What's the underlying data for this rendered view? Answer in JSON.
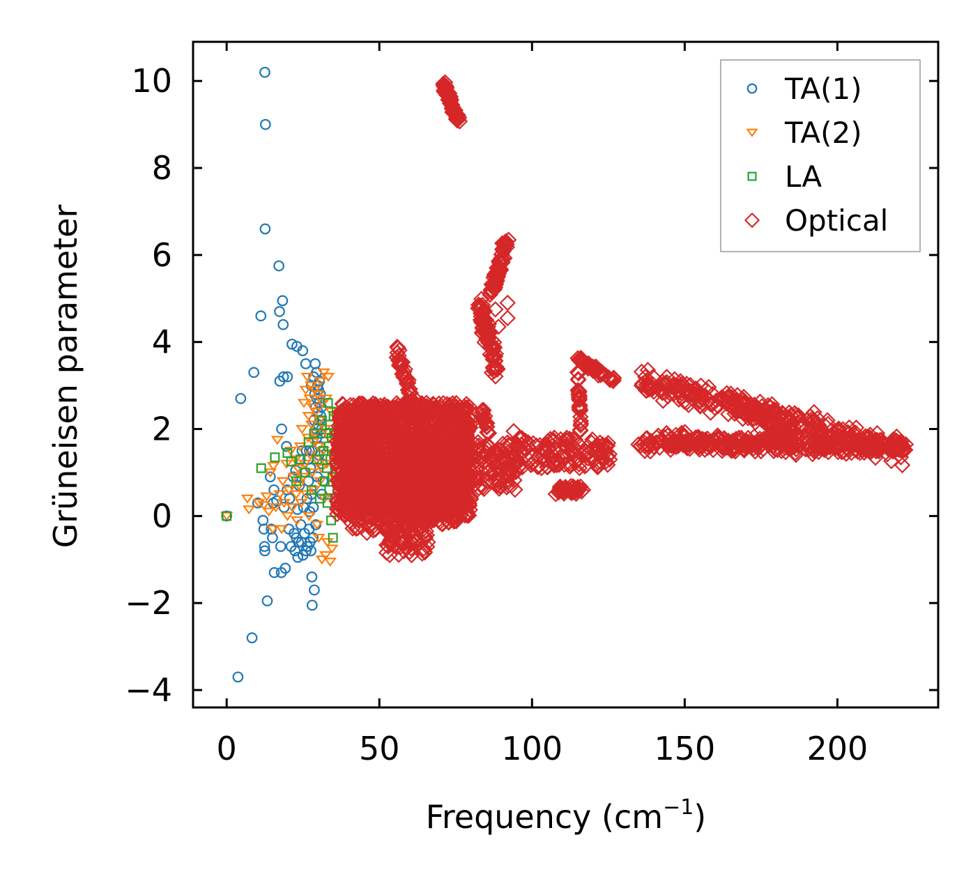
{
  "chart_data": {
    "type": "scatter",
    "title": "",
    "xlabel": "Frequency (cm",
    "xlabel_superscript": "−1",
    "xlabel_suffix": ")",
    "ylabel": "Grüneisen parameter",
    "xlim": [
      -11,
      233
    ],
    "ylim": [
      -4.4,
      10.9
    ],
    "xticks": [
      0,
      50,
      100,
      150,
      200
    ],
    "xtick_labels": [
      "0",
      "50",
      "100",
      "150",
      "200"
    ],
    "yticks": [
      -4,
      -2,
      0,
      2,
      4,
      6,
      8,
      10
    ],
    "ytick_labels": [
      "−4",
      "−2",
      "0",
      "2",
      "4",
      "6",
      "8",
      "10"
    ],
    "grid": false,
    "legend_position": "top-right",
    "series": [
      {
        "name": "TA(1)",
        "marker": "circle",
        "color": "#1f77b4",
        "points": [
          [
            0,
            0
          ],
          [
            3.7,
            -3.7
          ],
          [
            4.6,
            2.7
          ],
          [
            8.3,
            -2.8
          ],
          [
            8.9,
            3.3
          ],
          [
            10.2,
            0.3
          ],
          [
            11.2,
            4.6
          ],
          [
            11.9,
            -0.1
          ],
          [
            12.2,
            -0.3
          ],
          [
            12.4,
            -0.7
          ],
          [
            12.5,
            -0.8
          ],
          [
            12.5,
            10.2
          ],
          [
            12.6,
            6.6
          ],
          [
            12.7,
            9.0
          ],
          [
            13.3,
            -1.95
          ],
          [
            14.3,
            0.9
          ],
          [
            14.6,
            -0.3
          ],
          [
            15.0,
            -0.5
          ],
          [
            15.3,
            0.3
          ],
          [
            15.5,
            0.6
          ],
          [
            15.6,
            -1.3
          ],
          [
            16.4,
            0.35
          ],
          [
            17.1,
            5.75
          ],
          [
            17.3,
            4.7
          ],
          [
            17.4,
            3.1
          ],
          [
            17.7,
            -0.7
          ],
          [
            17.9,
            -1.3
          ],
          [
            18.0,
            2.0
          ],
          [
            18.3,
            4.95
          ],
          [
            18.5,
            4.4
          ],
          [
            18.6,
            3.2
          ],
          [
            18.8,
            0.2
          ],
          [
            19.2,
            -1.2
          ],
          [
            19.6,
            1.6
          ],
          [
            19.8,
            0.6
          ],
          [
            19.9,
            3.2
          ],
          [
            20.4,
            -0.3
          ],
          [
            20.6,
            0.4
          ],
          [
            21.1,
            -0.7
          ],
          [
            21.4,
            3.95
          ],
          [
            21.8,
            0.9
          ],
          [
            22.1,
            -0.4
          ],
          [
            22.4,
            -0.8
          ],
          [
            22.6,
            1.05
          ],
          [
            22.8,
            -0.5
          ],
          [
            23.0,
            3.9
          ],
          [
            23.2,
            0.15
          ],
          [
            23.3,
            -0.95
          ],
          [
            23.5,
            -0.6
          ],
          [
            23.8,
            0.7
          ],
          [
            24.1,
            1.3
          ],
          [
            24.3,
            -0.2
          ],
          [
            24.5,
            -0.6
          ],
          [
            24.7,
            1.5
          ],
          [
            24.9,
            3.8
          ],
          [
            25.0,
            -0.9
          ],
          [
            25.2,
            0.2
          ],
          [
            25.5,
            -0.4
          ],
          [
            25.7,
            1.0
          ],
          [
            25.9,
            3.5
          ],
          [
            26.0,
            -0.8
          ],
          [
            26.1,
            1.5
          ],
          [
            26.3,
            0.4
          ],
          [
            26.5,
            -0.7
          ],
          [
            26.6,
            1.3
          ],
          [
            26.8,
            0.8
          ],
          [
            27.0,
            -0.3
          ],
          [
            27.1,
            1.5
          ],
          [
            27.2,
            0.1
          ],
          [
            27.3,
            -0.6
          ],
          [
            27.5,
            1.1
          ],
          [
            27.6,
            -0.8
          ],
          [
            27.7,
            3.0
          ],
          [
            27.8,
            0.5
          ],
          [
            27.9,
            -1.4
          ],
          [
            28.0,
            -2.05
          ],
          [
            28.1,
            1.5
          ],
          [
            28.3,
            -0.5
          ],
          [
            28.4,
            0.2
          ],
          [
            28.5,
            3.2
          ],
          [
            28.6,
            2.2
          ],
          [
            28.7,
            -1.7
          ],
          [
            28.8,
            2.8
          ],
          [
            28.9,
            1.9
          ],
          [
            29.0,
            3.5
          ],
          [
            29.1,
            2.5
          ],
          [
            29.2,
            -0.2
          ],
          [
            29.3,
            2.0
          ],
          [
            29.4,
            3.3
          ],
          [
            29.5,
            1.8
          ],
          [
            29.6,
            2.7
          ],
          [
            29.7,
            0.9
          ],
          [
            29.8,
            3.0
          ],
          [
            29.9,
            2.4
          ],
          [
            30.0,
            2.1
          ],
          [
            30.1,
            2.9
          ],
          [
            30.2,
            1.4
          ],
          [
            30.3,
            2.6
          ],
          [
            30.4,
            3.1
          ],
          [
            30.5,
            2.2
          ],
          [
            30.6,
            1.6
          ],
          [
            30.7,
            2.8
          ],
          [
            30.8,
            2.3
          ],
          [
            30.9,
            1.9
          ],
          [
            31.0,
            2.5
          ],
          [
            31.1,
            2.0
          ],
          [
            31.2,
            0.5
          ],
          [
            31.3,
            1.2
          ],
          [
            31.5,
            0.8
          ]
        ]
      },
      {
        "name": "TA(2)",
        "marker": "triangle-down",
        "color": "#ff7f0e",
        "points": [
          [
            0,
            0
          ],
          [
            6.8,
            0.4
          ],
          [
            7.3,
            0.15
          ],
          [
            10.5,
            0.3
          ],
          [
            12.2,
            0.25
          ],
          [
            13.1,
            0.45
          ],
          [
            13.8,
            0.1
          ],
          [
            14.3,
            1.0
          ],
          [
            15.1,
            -0.3
          ],
          [
            15.3,
            1.15
          ],
          [
            16.1,
            0.2
          ],
          [
            16.6,
            1.75
          ],
          [
            17.4,
            0.5
          ],
          [
            18.0,
            -0.3
          ],
          [
            18.4,
            0.8
          ],
          [
            18.8,
            0.3
          ],
          [
            19.6,
            1.2
          ],
          [
            19.9,
            0.0
          ],
          [
            20.4,
            0.6
          ],
          [
            21.0,
            1.5
          ],
          [
            21.5,
            0.2
          ],
          [
            22.0,
            0.9
          ],
          [
            22.5,
            1.3
          ],
          [
            22.8,
            0.5
          ],
          [
            23.0,
            -0.1
          ],
          [
            23.3,
            1.1
          ],
          [
            23.7,
            0.7
          ],
          [
            24.1,
            1.6
          ],
          [
            24.4,
            0.3
          ],
          [
            24.7,
            2.0
          ],
          [
            25.0,
            0.9
          ],
          [
            25.3,
            2.6
          ],
          [
            25.6,
            1.2
          ],
          [
            25.9,
            2.9
          ],
          [
            26.1,
            0.5
          ],
          [
            26.4,
            3.2
          ],
          [
            26.6,
            1.8
          ],
          [
            26.8,
            2.3
          ],
          [
            27.0,
            0.0
          ],
          [
            27.2,
            2.7
          ],
          [
            27.4,
            1.4
          ],
          [
            27.6,
            3.0
          ],
          [
            27.8,
            2.1
          ],
          [
            28.0,
            1.0
          ],
          [
            28.2,
            2.5
          ],
          [
            28.4,
            1.7
          ],
          [
            28.6,
            0.6
          ],
          [
            28.8,
            2.9
          ],
          [
            29.0,
            1.9
          ],
          [
            29.2,
            2.4
          ],
          [
            29.4,
            1.3
          ],
          [
            29.6,
            -0.2
          ],
          [
            29.8,
            2.8
          ],
          [
            30.0,
            1.6
          ],
          [
            30.2,
            -0.5
          ],
          [
            30.4,
            2.2
          ],
          [
            30.6,
            0.8
          ],
          [
            30.8,
            3.1
          ],
          [
            31.0,
            1.1
          ],
          [
            31.2,
            -1.0
          ],
          [
            31.4,
            2.6
          ],
          [
            31.6,
            1.5
          ],
          [
            31.8,
            3.3
          ],
          [
            32.0,
            0.4
          ],
          [
            32.2,
            2.0
          ],
          [
            32.4,
            -0.9
          ],
          [
            32.6,
            2.7
          ],
          [
            32.8,
            1.2
          ],
          [
            33.0,
            -0.6
          ],
          [
            33.3,
            3.2
          ],
          [
            33.6,
            1.8
          ],
          [
            33.9,
            -1.05
          ],
          [
            34.2,
            2.4
          ],
          [
            34.5,
            -0.75
          ],
          [
            34.8,
            1.4
          ],
          [
            35.1,
            0.9
          ]
        ]
      },
      {
        "name": "LA",
        "marker": "square",
        "color": "#2ca02c",
        "points": [
          [
            0,
            0
          ],
          [
            11.3,
            1.1
          ],
          [
            15.8,
            1.35
          ],
          [
            19.9,
            1.45
          ],
          [
            21.1,
            1.25
          ],
          [
            22.8,
            0.8
          ],
          [
            24.2,
            1.3
          ],
          [
            25.7,
            1.0
          ],
          [
            26.8,
            1.7
          ],
          [
            27.8,
            0.6
          ],
          [
            28.6,
            1.9
          ],
          [
            29.6,
            1.3
          ],
          [
            30.5,
            0.4
          ],
          [
            31.2,
            2.2
          ],
          [
            31.7,
            1.5
          ],
          [
            32.1,
            0.8
          ],
          [
            32.5,
            1.9
          ],
          [
            32.8,
            1.1
          ],
          [
            33.0,
            0.3
          ],
          [
            33.2,
            2.6
          ],
          [
            33.4,
            1.6
          ],
          [
            33.6,
            0.6
          ],
          [
            33.8,
            2.1
          ],
          [
            34.0,
            1.3
          ],
          [
            34.2,
            -0.1
          ],
          [
            34.4,
            1.8
          ],
          [
            34.6,
            0.9
          ],
          [
            34.8,
            -0.5
          ],
          [
            35.0,
            2.3
          ],
          [
            35.2,
            1.4
          ],
          [
            35.4,
            0.4
          ],
          [
            35.6,
            1.9
          ],
          [
            35.8,
            1.0
          ],
          [
            36.0,
            2.4
          ],
          [
            36.2,
            1.6
          ],
          [
            36.4,
            0.7
          ],
          [
            36.6,
            2.0
          ],
          [
            36.8,
            1.2
          ],
          [
            37.0,
            1.8
          ],
          [
            37.2,
            1.5
          ],
          [
            37.4,
            2.2
          ],
          [
            37.6,
            1.7
          ],
          [
            37.8,
            2.0
          ],
          [
            38.0,
            1.8
          ]
        ]
      },
      {
        "name": "Optical",
        "marker": "diamond",
        "color": "#d62728",
        "clusters": [
          {
            "x": [
              36,
              80
            ],
            "y": [
              0.0,
              2.6
            ],
            "n": 1600
          },
          {
            "x": [
              40,
              62
            ],
            "y": [
              -0.4,
              2.0
            ],
            "n": 260
          },
          {
            "x": [
              52,
              66
            ],
            "y": [
              -0.9,
              0.6
            ],
            "n": 120
          },
          {
            "x": [
              60,
              76
            ],
            "y": [
              -0.2,
              1.4
            ],
            "n": 200
          },
          {
            "x": [
              66,
              96
            ],
            "y": [
              0.6,
              1.7
            ],
            "n": 220
          },
          {
            "x": [
              95,
              126
            ],
            "y": [
              1.1,
              1.8
            ],
            "n": 130
          }
        ],
        "lines": [
          {
            "from": [
              71,
              9.95
            ],
            "to": [
              76,
              9.05
            ],
            "n": 70,
            "jx": 0.9,
            "jy": 0.12
          },
          {
            "from": [
              87,
              5.2
            ],
            "to": [
              91.5,
              6.35
            ],
            "n": 70,
            "jx": 1.1,
            "jy": 0.2
          },
          {
            "from": [
              83,
              4.8
            ],
            "to": [
              88.5,
              3.4
            ],
            "n": 90,
            "jx": 1.6,
            "jy": 0.35
          },
          {
            "from": [
              83,
              2.5
            ],
            "to": [
              86,
              1.9
            ],
            "n": 18,
            "jx": 0.6,
            "jy": 0.2
          },
          {
            "from": [
              55.5,
              3.9
            ],
            "to": [
              61.5,
              2.5
            ],
            "n": 45,
            "jx": 1.0,
            "jy": 0.25
          },
          {
            "from": [
              115,
              3.6
            ],
            "to": [
              127,
              3.1
            ],
            "n": 55,
            "jx": 0.6,
            "jy": 0.1
          },
          {
            "from": [
              115,
              3.3
            ],
            "to": [
              116,
              1.9
            ],
            "n": 30,
            "jx": 0.4,
            "jy": 0.1
          },
          {
            "from": [
              108,
              0.6
            ],
            "to": [
              117,
              0.6
            ],
            "n": 40,
            "jx": 1.2,
            "jy": 0.12
          },
          {
            "from": [
              136,
              3.1
            ],
            "to": [
              222,
              1.5
            ],
            "n": 300,
            "jx": 2.0,
            "jy": 0.45
          },
          {
            "from": [
              136,
              1.7
            ],
            "to": [
              222,
              1.6
            ],
            "n": 350,
            "jx": 2.0,
            "jy": 0.28
          },
          {
            "from": [
              162,
              2.8
            ],
            "to": [
              185,
              1.8
            ],
            "n": 60,
            "jx": 1.5,
            "jy": 0.3
          }
        ],
        "points": [
          [
            92,
            4.9
          ],
          [
            92,
            4.55
          ],
          [
            89,
            4.35
          ],
          [
            88,
            4.75
          ],
          [
            94,
            1.95
          ],
          [
            96,
            1.8
          ],
          [
            73,
            1.5
          ],
          [
            66,
            1.65
          ]
        ]
      }
    ]
  }
}
